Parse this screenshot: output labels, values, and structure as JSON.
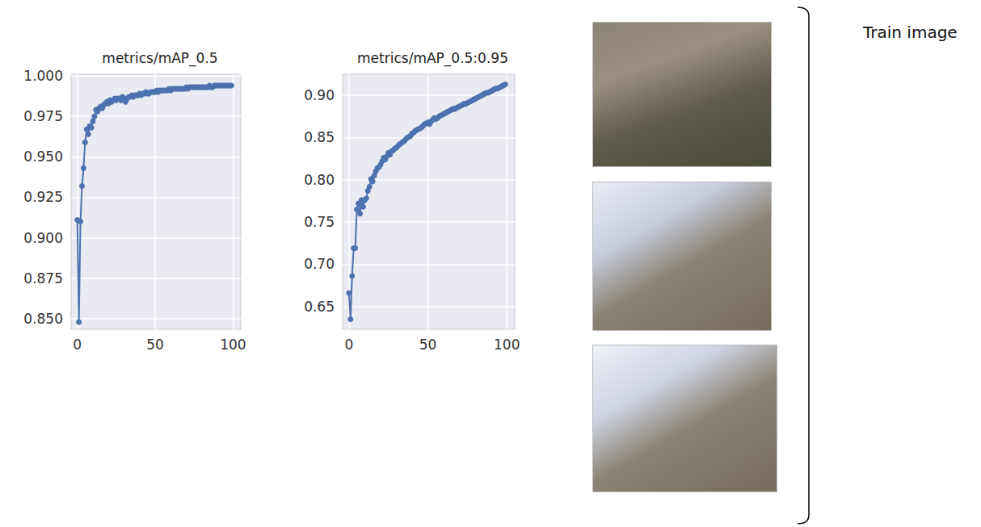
{
  "chart_data": [
    {
      "type": "line",
      "title": "metrics/mAP_0.5",
      "color": "#4c72b0",
      "marker": "circle",
      "grid": true,
      "x": [
        0,
        1,
        2,
        3,
        4,
        5,
        6,
        7,
        8,
        9,
        10,
        11,
        12,
        13,
        14,
        15,
        16,
        17,
        18,
        19,
        20,
        21,
        22,
        23,
        24,
        25,
        26,
        27,
        28,
        29,
        30,
        31,
        32,
        33,
        34,
        35,
        36,
        37,
        38,
        39,
        40,
        41,
        42,
        43,
        44,
        45,
        46,
        47,
        48,
        49,
        50,
        51,
        52,
        53,
        54,
        55,
        56,
        57,
        58,
        59,
        60,
        61,
        62,
        63,
        64,
        65,
        66,
        67,
        68,
        69,
        70,
        71,
        72,
        73,
        74,
        75,
        76,
        77,
        78,
        79,
        80,
        81,
        82,
        83,
        84,
        85,
        86,
        87,
        88,
        89,
        90,
        91,
        92,
        93,
        94,
        95,
        96,
        97,
        98,
        99
      ],
      "values": [
        0.911,
        0.848,
        0.91,
        0.932,
        0.943,
        0.959,
        0.967,
        0.964,
        0.969,
        0.968,
        0.972,
        0.975,
        0.979,
        0.978,
        0.98,
        0.981,
        0.98,
        0.982,
        0.983,
        0.984,
        0.983,
        0.985,
        0.984,
        0.985,
        0.986,
        0.985,
        0.986,
        0.986,
        0.985,
        0.987,
        0.986,
        0.984,
        0.986,
        0.987,
        0.987,
        0.988,
        0.987,
        0.988,
        0.988,
        0.988,
        0.989,
        0.988,
        0.989,
        0.989,
        0.99,
        0.989,
        0.989,
        0.99,
        0.99,
        0.99,
        0.99,
        0.991,
        0.99,
        0.991,
        0.991,
        0.991,
        0.991,
        0.991,
        0.991,
        0.992,
        0.991,
        0.992,
        0.992,
        0.992,
        0.992,
        0.992,
        0.992,
        0.992,
        0.992,
        0.992,
        0.993,
        0.992,
        0.993,
        0.993,
        0.993,
        0.993,
        0.993,
        0.993,
        0.993,
        0.993,
        0.993,
        0.993,
        0.993,
        0.993,
        0.993,
        0.994,
        0.993,
        0.993,
        0.994,
        0.994,
        0.994,
        0.994,
        0.994,
        0.994,
        0.994,
        0.994,
        0.994,
        0.994,
        0.994,
        0.994
      ],
      "xlim": [
        -4,
        105
      ],
      "xticks": [
        0,
        50,
        100
      ],
      "ylim": [
        0.8435,
        1.001
      ],
      "yticks": [
        {
          "value": 0.85,
          "label": "0.850"
        },
        {
          "value": 0.875,
          "label": "0.875"
        },
        {
          "value": 0.9,
          "label": "0.900"
        },
        {
          "value": 0.925,
          "label": "0.925"
        },
        {
          "value": 0.95,
          "label": "0.950"
        },
        {
          "value": 0.975,
          "label": "0.975"
        },
        {
          "value": 1.0,
          "label": "1.000"
        }
      ]
    },
    {
      "type": "line",
      "title": "metrics/mAP_0.5:0.95",
      "color": "#4c72b0",
      "marker": "circle",
      "grid": true,
      "x": [
        0,
        1,
        2,
        3,
        4,
        5,
        6,
        7,
        8,
        9,
        10,
        11,
        12,
        13,
        14,
        15,
        16,
        17,
        18,
        19,
        20,
        21,
        22,
        23,
        24,
        25,
        26,
        27,
        28,
        29,
        30,
        31,
        32,
        33,
        34,
        35,
        36,
        37,
        38,
        39,
        40,
        41,
        42,
        43,
        44,
        45,
        46,
        47,
        48,
        49,
        50,
        51,
        52,
        53,
        54,
        55,
        56,
        57,
        58,
        59,
        60,
        61,
        62,
        63,
        64,
        65,
        66,
        67,
        68,
        69,
        70,
        71,
        72,
        73,
        74,
        75,
        76,
        77,
        78,
        79,
        80,
        81,
        82,
        83,
        84,
        85,
        86,
        87,
        88,
        89,
        90,
        91,
        92,
        93,
        94,
        95,
        96,
        97,
        98,
        99
      ],
      "values": [
        0.666,
        0.635,
        0.686,
        0.719,
        0.719,
        0.765,
        0.772,
        0.76,
        0.776,
        0.768,
        0.776,
        0.778,
        0.787,
        0.792,
        0.801,
        0.798,
        0.805,
        0.81,
        0.814,
        0.815,
        0.818,
        0.822,
        0.826,
        0.824,
        0.828,
        0.832,
        0.83,
        0.834,
        0.835,
        0.837,
        0.838,
        0.84,
        0.842,
        0.843,
        0.845,
        0.846,
        0.848,
        0.85,
        0.851,
        0.852,
        0.855,
        0.856,
        0.858,
        0.859,
        0.86,
        0.861,
        0.862,
        0.864,
        0.866,
        0.867,
        0.868,
        0.866,
        0.869,
        0.871,
        0.873,
        0.872,
        0.873,
        0.875,
        0.876,
        0.877,
        0.878,
        0.879,
        0.88,
        0.881,
        0.882,
        0.883,
        0.884,
        0.884,
        0.885,
        0.886,
        0.887,
        0.888,
        0.889,
        0.89,
        0.89,
        0.891,
        0.892,
        0.893,
        0.894,
        0.895,
        0.896,
        0.897,
        0.898,
        0.899,
        0.9,
        0.901,
        0.902,
        0.903,
        0.903,
        0.904,
        0.905,
        0.906,
        0.907,
        0.908,
        0.908,
        0.909,
        0.91,
        0.911,
        0.912,
        0.913
      ],
      "xlim": [
        -4,
        105
      ],
      "xticks": [
        0,
        50,
        100
      ],
      "ylim": [
        0.623,
        0.925
      ],
      "yticks": [
        0.65,
        {
          "value": 0.7,
          "label": "0.70"
        },
        0.75,
        {
          "value": 0.8,
          "label": "0.80"
        },
        0.85,
        {
          "value": 0.9,
          "label": "0.90"
        }
      ]
    }
  ],
  "side_label": "Train image"
}
